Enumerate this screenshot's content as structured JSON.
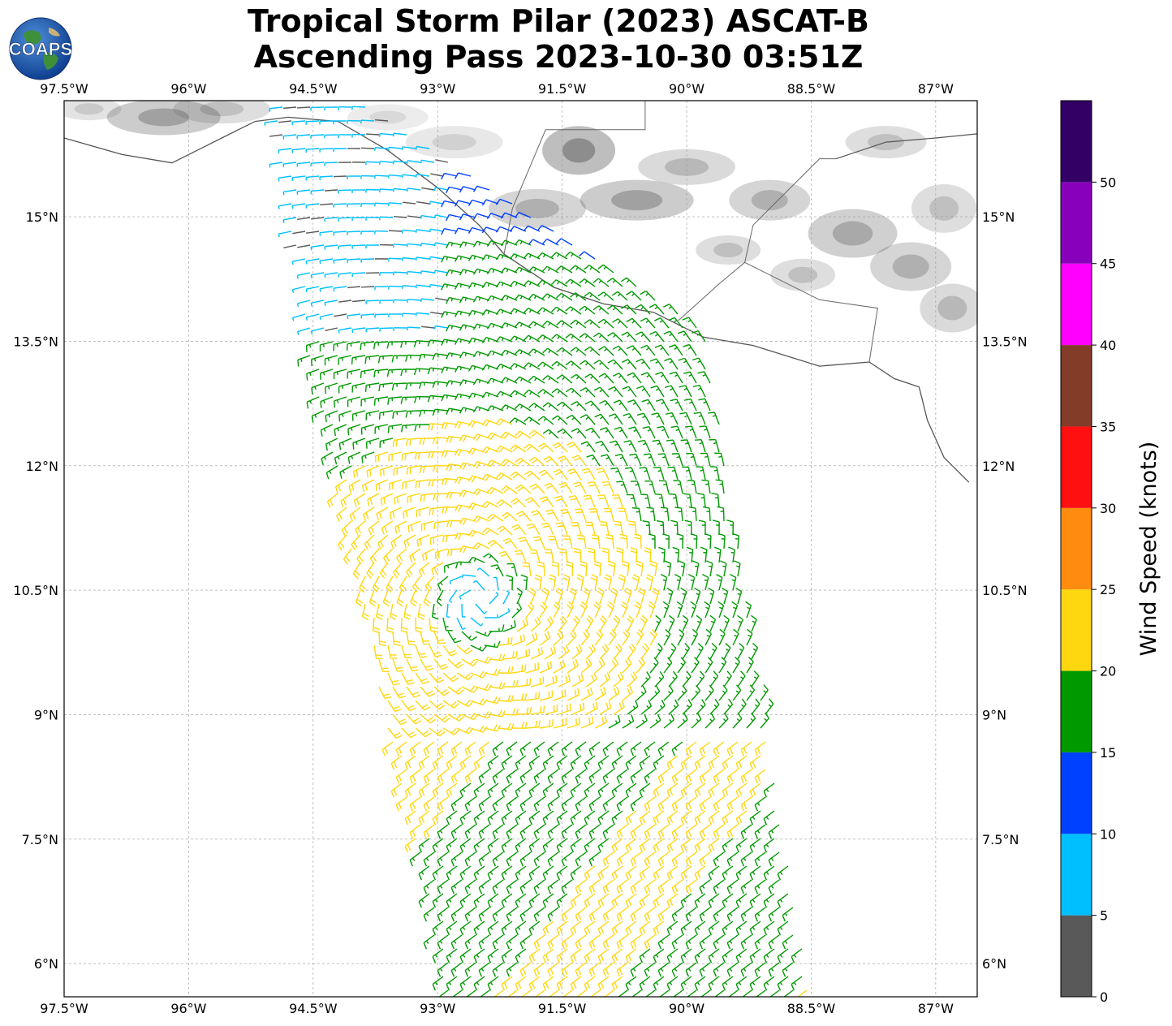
{
  "title": {
    "line1": "Tropical Storm Pilar (2023) ASCAT-B",
    "line2": "Ascending Pass 2023-10-30 03:51Z"
  },
  "logo": {
    "text": "COAPS",
    "icon": "globe-logo-icon"
  },
  "map": {
    "lon_range": [
      -97.5,
      -86.5
    ],
    "lat_range": [
      5.6,
      16.4
    ],
    "grid": true,
    "lon_ticks": [
      {
        "value": -97.5,
        "label": "97.5°W"
      },
      {
        "value": -96,
        "label": "96°W"
      },
      {
        "value": -94.5,
        "label": "94.5°W"
      },
      {
        "value": -93,
        "label": "93°W"
      },
      {
        "value": -91.5,
        "label": "91.5°W"
      },
      {
        "value": -90,
        "label": "90°W"
      },
      {
        "value": -88.5,
        "label": "88.5°W"
      },
      {
        "value": -87,
        "label": "87°W"
      }
    ],
    "lat_ticks": [
      {
        "value": 15,
        "label": "15°N"
      },
      {
        "value": 13.5,
        "label": "13.5°N"
      },
      {
        "value": 12,
        "label": "12°N"
      },
      {
        "value": 10.5,
        "label": "10.5°N"
      },
      {
        "value": 9,
        "label": "9°N"
      },
      {
        "value": 7.5,
        "label": "7.5°N"
      },
      {
        "value": 6,
        "label": "6°N"
      }
    ],
    "storm_center": {
      "lon": -92.5,
      "lat": 10.4
    },
    "swath_corners": [
      {
        "lon": -95.0,
        "lat": 16.4
      },
      {
        "lon": -93.9,
        "lat": 16.4
      },
      {
        "lon": -89.8,
        "lat": 13.7
      },
      {
        "lon": -88.5,
        "lat": 5.6
      },
      {
        "lon": -92.9,
        "lat": 5.6
      },
      {
        "lon": -94.5,
        "lat": 13.0
      }
    ],
    "land_color": "#ffffff",
    "ocean_color": "#ffffff",
    "coast_color": "#555555"
  },
  "colorbar": {
    "title": "Wind Speed (knots)",
    "range": [
      0,
      55
    ],
    "bins": [
      {
        "from": 0,
        "to": 5,
        "color": "#595959"
      },
      {
        "from": 5,
        "to": 10,
        "color": "#00bfff"
      },
      {
        "from": 10,
        "to": 15,
        "color": "#0040ff"
      },
      {
        "from": 15,
        "to": 20,
        "color": "#009900"
      },
      {
        "from": 20,
        "to": 25,
        "color": "#ffd710"
      },
      {
        "from": 25,
        "to": 30,
        "color": "#ff8c10"
      },
      {
        "from": 30,
        "to": 35,
        "color": "#ff1010"
      },
      {
        "from": 35,
        "to": 40,
        "color": "#823c28"
      },
      {
        "from": 40,
        "to": 45,
        "color": "#ff00ff"
      },
      {
        "from": 45,
        "to": 50,
        "color": "#8800bb"
      },
      {
        "from": 50,
        "to": 55,
        "color": "#330066"
      }
    ],
    "ticks": [
      0,
      5,
      10,
      15,
      20,
      25,
      30,
      35,
      40,
      45,
      50
    ]
  }
}
